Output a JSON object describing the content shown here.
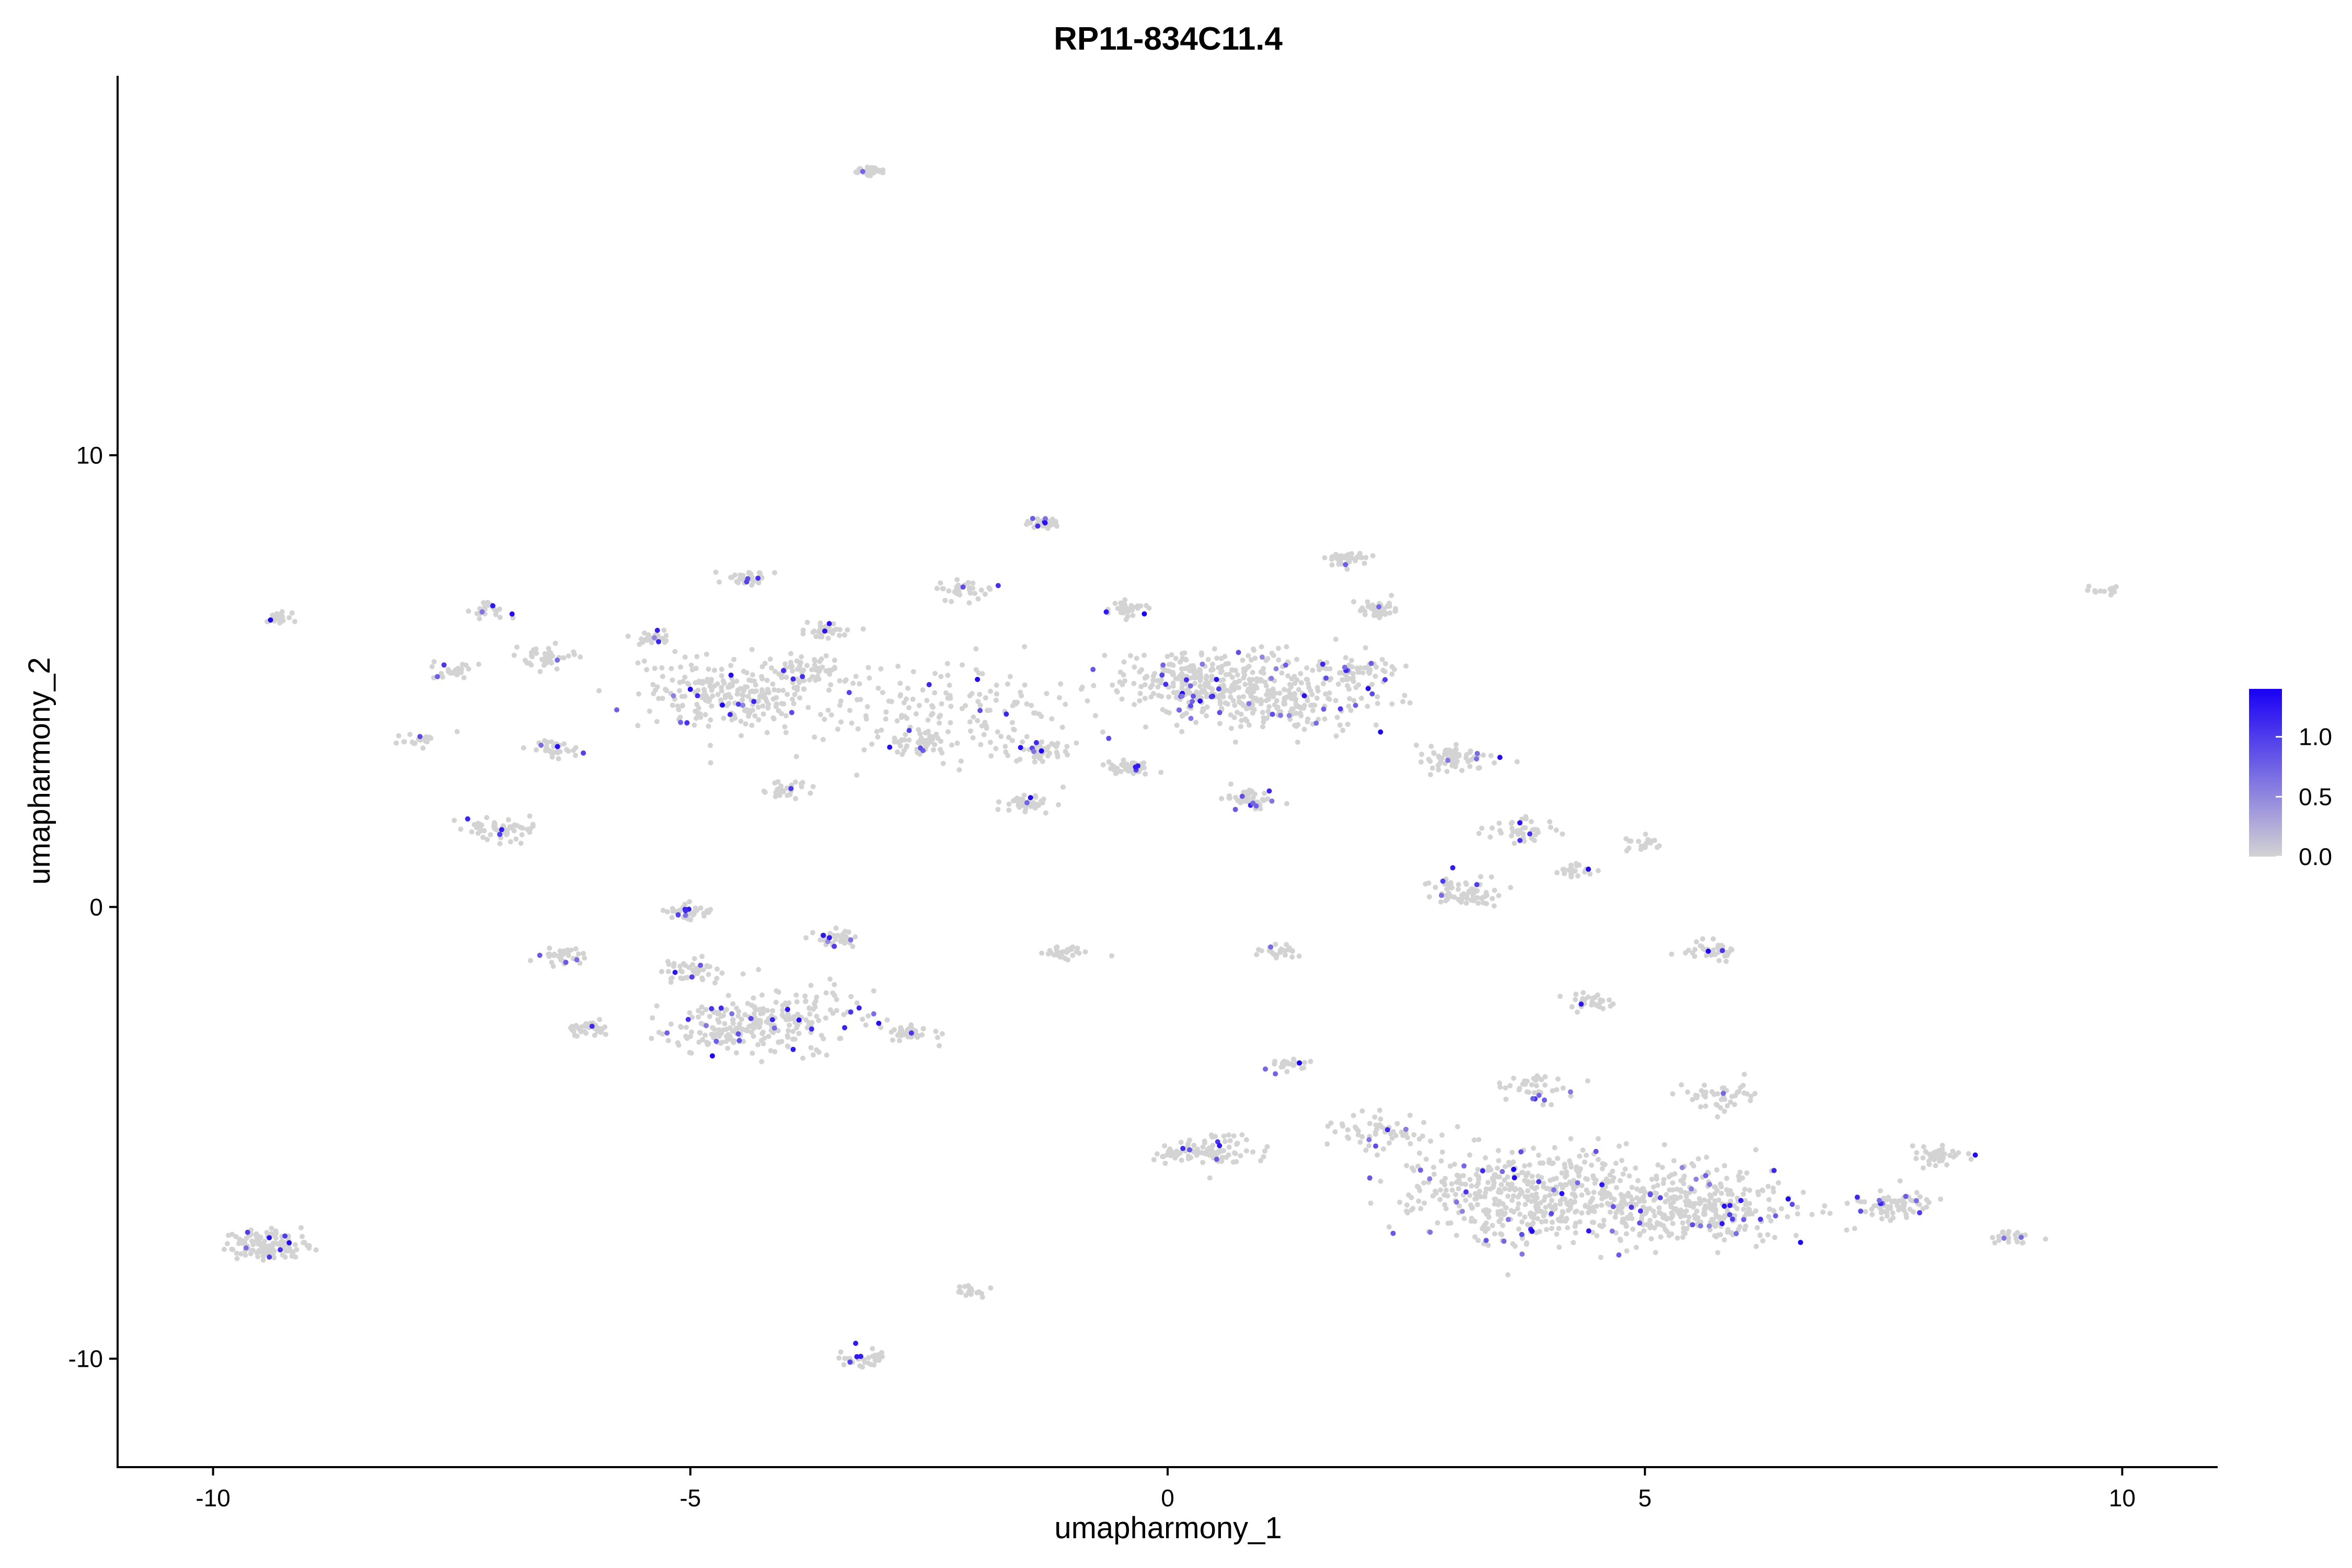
{
  "chart_data": {
    "type": "scatter",
    "title": "RP11-834C11.4",
    "xlabel": "umapharmony_1",
    "ylabel": "umapharmony_2",
    "xlim": [
      -11.0,
      11.0
    ],
    "ylim": [
      -12.4,
      18.4
    ],
    "xticks": [
      -10,
      -5,
      0,
      5,
      10
    ],
    "yticks": [
      -10,
      0,
      10
    ],
    "grid": false,
    "legend": {
      "placement": "right",
      "type": "colorbar",
      "min": 0.0,
      "max": 1.4,
      "ticks": [
        0.0,
        0.5,
        1.0
      ],
      "tick_labels": [
        "0.0",
        "0.5",
        "1.0"
      ],
      "low_color": "#d3d3d3",
      "high_color": "#1a00f5"
    },
    "clusters": [
      {
        "x": -3.1,
        "y": 16.3,
        "spread": 0.08,
        "n": 35
      },
      {
        "x": -9.3,
        "y": 6.4,
        "spread": 0.1,
        "n": 25
      },
      {
        "x": -7.1,
        "y": 6.6,
        "spread": 0.12,
        "n": 25
      },
      {
        "x": -7.5,
        "y": 5.2,
        "spread": 0.12,
        "n": 30
      },
      {
        "x": -6.5,
        "y": 5.5,
        "spread": 0.15,
        "n": 40
      },
      {
        "x": -7.9,
        "y": 3.7,
        "spread": 0.12,
        "n": 20
      },
      {
        "x": -6.4,
        "y": 3.5,
        "spread": 0.12,
        "n": 35
      },
      {
        "x": -7.0,
        "y": 1.7,
        "spread": 0.18,
        "n": 60
      },
      {
        "x": -5.4,
        "y": 6.0,
        "spread": 0.12,
        "n": 30
      },
      {
        "x": -4.5,
        "y": 4.7,
        "spread": 0.5,
        "n": 260
      },
      {
        "x": -4.4,
        "y": 7.3,
        "spread": 0.12,
        "n": 35
      },
      {
        "x": -3.6,
        "y": 6.1,
        "spread": 0.12,
        "n": 35
      },
      {
        "x": -3.8,
        "y": 5.3,
        "spread": 0.18,
        "n": 40
      },
      {
        "x": -4.0,
        "y": 2.6,
        "spread": 0.12,
        "n": 30
      },
      {
        "x": -2.6,
        "y": 3.6,
        "spread": 0.18,
        "n": 50
      },
      {
        "x": -2.1,
        "y": 7.0,
        "spread": 0.15,
        "n": 35
      },
      {
        "x": -1.3,
        "y": 8.5,
        "spread": 0.08,
        "n": 40
      },
      {
        "x": -2.3,
        "y": 4.4,
        "spread": 0.7,
        "n": 160
      },
      {
        "x": -1.3,
        "y": 3.5,
        "spread": 0.15,
        "n": 45
      },
      {
        "x": -1.5,
        "y": 2.3,
        "spread": 0.12,
        "n": 40
      },
      {
        "x": -0.4,
        "y": 6.6,
        "spread": 0.1,
        "n": 35
      },
      {
        "x": 0.3,
        "y": 5.0,
        "spread": 0.45,
        "n": 240
      },
      {
        "x": -0.4,
        "y": 3.1,
        "spread": 0.12,
        "n": 40
      },
      {
        "x": 1.2,
        "y": 4.7,
        "spread": 0.55,
        "n": 260
      },
      {
        "x": 0.9,
        "y": 2.4,
        "spread": 0.12,
        "n": 45
      },
      {
        "x": 1.9,
        "y": 7.7,
        "spread": 0.1,
        "n": 40
      },
      {
        "x": 2.2,
        "y": 6.6,
        "spread": 0.12,
        "n": 40
      },
      {
        "x": 2.0,
        "y": 5.2,
        "spread": 0.2,
        "n": 50
      },
      {
        "x": 3.0,
        "y": 3.3,
        "spread": 0.2,
        "n": 70
      },
      {
        "x": 3.7,
        "y": 1.7,
        "spread": 0.2,
        "n": 40
      },
      {
        "x": 4.3,
        "y": 0.8,
        "spread": 0.12,
        "n": 25
      },
      {
        "x": 5.0,
        "y": 1.4,
        "spread": 0.12,
        "n": 20
      },
      {
        "x": 3.1,
        "y": 0.3,
        "spread": 0.2,
        "n": 70
      },
      {
        "x": 9.8,
        "y": 7.0,
        "spread": 0.08,
        "n": 15
      },
      {
        "x": -5.0,
        "y": -0.1,
        "spread": 0.12,
        "n": 40
      },
      {
        "x": -6.3,
        "y": -1.1,
        "spread": 0.12,
        "n": 35
      },
      {
        "x": -6.1,
        "y": -2.7,
        "spread": 0.12,
        "n": 35
      },
      {
        "x": -5.0,
        "y": -1.4,
        "spread": 0.15,
        "n": 45
      },
      {
        "x": -4.1,
        "y": -2.5,
        "spread": 0.45,
        "n": 200
      },
      {
        "x": -4.7,
        "y": -2.8,
        "spread": 0.3,
        "n": 80
      },
      {
        "x": -3.5,
        "y": -0.7,
        "spread": 0.12,
        "n": 40
      },
      {
        "x": -2.7,
        "y": -2.8,
        "spread": 0.12,
        "n": 40
      },
      {
        "x": -1.1,
        "y": -1.0,
        "spread": 0.12,
        "n": 30
      },
      {
        "x": 1.2,
        "y": -1.0,
        "spread": 0.1,
        "n": 25
      },
      {
        "x": 1.3,
        "y": -3.5,
        "spread": 0.1,
        "n": 25
      },
      {
        "x": 5.7,
        "y": -1.0,
        "spread": 0.15,
        "n": 40
      },
      {
        "x": 4.4,
        "y": -2.1,
        "spread": 0.12,
        "n": 30
      },
      {
        "x": 0.4,
        "y": -5.4,
        "spread": 0.25,
        "n": 100
      },
      {
        "x": 2.3,
        "y": -5.0,
        "spread": 0.3,
        "n": 60
      },
      {
        "x": 3.8,
        "y": -6.4,
        "spread": 0.7,
        "n": 500
      },
      {
        "x": 5.6,
        "y": -6.6,
        "spread": 0.55,
        "n": 350
      },
      {
        "x": 3.9,
        "y": -4.0,
        "spread": 0.2,
        "n": 40
      },
      {
        "x": 5.8,
        "y": -4.2,
        "spread": 0.2,
        "n": 45
      },
      {
        "x": 7.6,
        "y": -6.6,
        "spread": 0.2,
        "n": 70
      },
      {
        "x": 8.1,
        "y": -5.5,
        "spread": 0.15,
        "n": 40
      },
      {
        "x": 8.8,
        "y": -7.3,
        "spread": 0.12,
        "n": 25
      },
      {
        "x": -9.4,
        "y": -7.5,
        "spread": 0.22,
        "n": 130
      },
      {
        "x": -2.1,
        "y": -8.5,
        "spread": 0.1,
        "n": 20
      },
      {
        "x": -3.2,
        "y": -10.0,
        "spread": 0.12,
        "n": 35
      }
    ]
  }
}
